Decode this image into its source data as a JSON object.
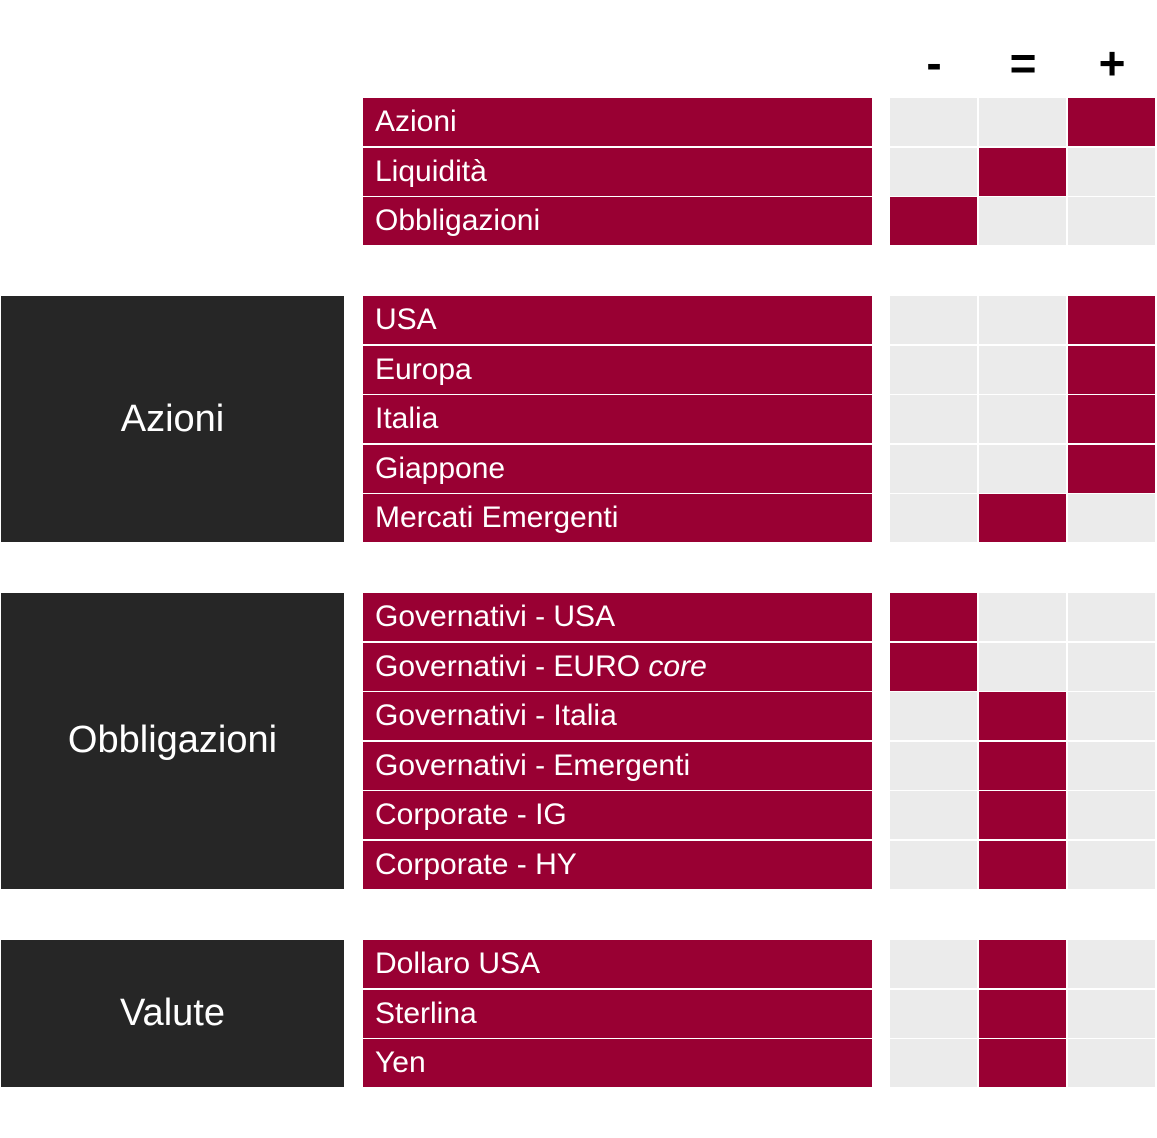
{
  "header": {
    "columns": [
      "-",
      "=",
      "+"
    ]
  },
  "colors": {
    "accent": "#990033",
    "group_bg": "#262626",
    "empty_cell": "#ebebeb"
  },
  "groups": [
    {
      "label": "",
      "rows": [
        {
          "label": "Azioni",
          "position": "+"
        },
        {
          "label": "Liquidità",
          "position": "="
        },
        {
          "label": "Obbligazioni",
          "position": "-"
        }
      ]
    },
    {
      "label": "Azioni",
      "rows": [
        {
          "label": "USA",
          "position": "+"
        },
        {
          "label": "Europa",
          "position": "+"
        },
        {
          "label": "Italia",
          "position": "+"
        },
        {
          "label": "Giappone",
          "position": "+"
        },
        {
          "label": "Mercati Emergenti",
          "position": "="
        }
      ]
    },
    {
      "label": "Obbligazioni",
      "rows": [
        {
          "label": "Governativi - USA",
          "position": "-"
        },
        {
          "label": "Governativi - EURO ",
          "label_italic": "core",
          "position": "-"
        },
        {
          "label": "Governativi - Italia",
          "position": "="
        },
        {
          "label": "Governativi - Emergenti",
          "position": "="
        },
        {
          "label": "Corporate - IG",
          "position": "="
        },
        {
          "label": "Corporate - HY",
          "position": "="
        }
      ]
    },
    {
      "label": "Valute",
      "rows": [
        {
          "label": "Dollaro USA",
          "position": "="
        },
        {
          "label": "Sterlina",
          "position": "="
        },
        {
          "label": "Yen",
          "position": "="
        }
      ]
    }
  ]
}
